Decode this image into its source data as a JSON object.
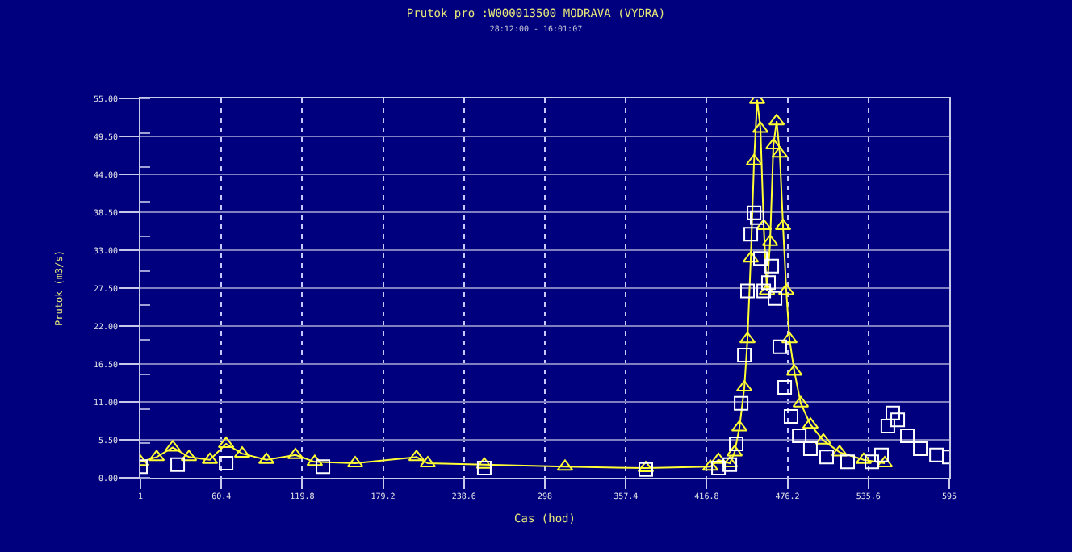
{
  "chart_data": {
    "type": "line",
    "title": "Prutok pro :W000013500 MODRAVA (VYDRA)",
    "subtitle": "28:12:00 - 16:01:07",
    "xlabel": "Cas (hod)",
    "ylabel": "Prutok (m3/s)",
    "xlim": [
      1,
      595
    ],
    "xticks": [
      1,
      60.4,
      119.8,
      179.2,
      238.6,
      298,
      357.4,
      416.8,
      476.2,
      535.6,
      595
    ],
    "ylim": [
      0,
      55
    ],
    "yticks": [
      {
        "value": 0,
        "label": "0.00"
      },
      {
        "value": 5.5,
        "label": "5.50"
      },
      {
        "value": 11,
        "label": "11.00"
      },
      {
        "value": 16.5,
        "label": "16.50"
      },
      {
        "value": 22,
        "label": "22.00"
      },
      {
        "value": 27.5,
        "label": "27.50"
      },
      {
        "value": 33,
        "label": "33.00"
      },
      {
        "value": 38.5,
        "label": "38.50"
      },
      {
        "value": 44,
        "label": "44.00"
      },
      {
        "value": 49.5,
        "label": "49.50"
      },
      {
        "value": 55,
        "label": "55.00"
      }
    ],
    "grid": true,
    "legend": false,
    "series": [
      {
        "color": "#ffff33",
        "marker": "triangle",
        "line_style": "solid",
        "x": [
          1,
          12.9,
          24.7,
          36.6,
          52.0,
          63.9,
          75.7,
          93.5,
          114.8,
          129.0,
          158.7,
          203.7,
          212.0,
          253.5,
          312.8,
          372.1,
          419.5,
          425.5,
          433.8,
          437.3,
          440.9,
          444.5,
          446.8,
          449.2,
          451.6,
          453.9,
          456.3,
          458.7,
          461.1,
          463.4,
          465.8,
          468.2,
          470.5,
          472.9,
          475.3,
          477.6,
          481.2,
          485.9,
          493.0,
          502.5,
          514.4,
          532.1,
          547.6
        ],
        "values": [
          2.3,
          3.0,
          4.4,
          3.0,
          2.6,
          4.9,
          3.5,
          2.6,
          3.3,
          2.3,
          2.1,
          3.0,
          2.1,
          1.9,
          1.6,
          1.4,
          1.6,
          2.6,
          2.1,
          3.7,
          7.3,
          13.1,
          20.1,
          31.8,
          45.9,
          54.8,
          50.6,
          36.5,
          27.1,
          34.2,
          48.2,
          51.7,
          47.0,
          36.5,
          27.1,
          20.1,
          15.4,
          10.8,
          7.7,
          5.4,
          3.7,
          2.6,
          2.1
        ]
      },
      {
        "type": "scatter",
        "color": "#ffffff",
        "marker": "square",
        "x": [
          1,
          28.3,
          63.9,
          135.0,
          253.5,
          372.1,
          425.5,
          433.8,
          438.5,
          442.1,
          444.5,
          446.8,
          449.2,
          451.6,
          453.9,
          456.3,
          458.7,
          462.2,
          464.6,
          467.0,
          470.5,
          474.1,
          478.8,
          484.8,
          493.0,
          504.9,
          520.3,
          538.1,
          545.2,
          549.9,
          553.5,
          557.1,
          564.2,
          573.7,
          585.6,
          595
        ],
        "values": [
          1.6,
          1.9,
          2.1,
          1.6,
          1.4,
          1.2,
          1.4,
          1.9,
          4.9,
          10.8,
          17.8,
          27.1,
          35.3,
          38.4,
          37.7,
          31.8,
          27.1,
          28.3,
          30.7,
          26.0,
          19.0,
          13.1,
          8.9,
          6.1,
          4.2,
          3.0,
          2.3,
          2.3,
          3.3,
          7.5,
          9.4,
          8.4,
          6.1,
          4.2,
          3.3,
          3.0
        ]
      }
    ]
  }
}
